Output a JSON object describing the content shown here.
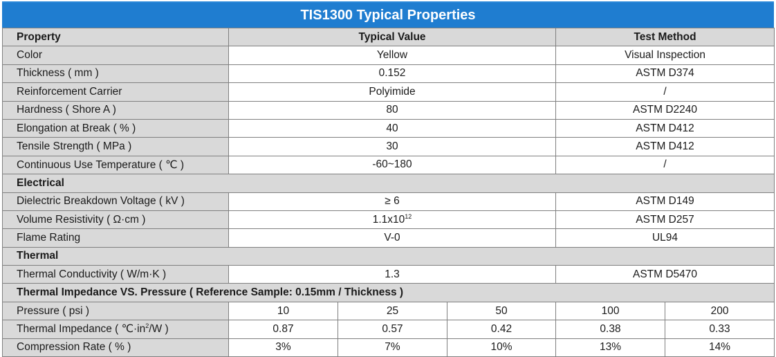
{
  "title": "TIS1300 Typical Properties",
  "header": {
    "property": "Property",
    "typical_value": "Typical Value",
    "test_method": "Test Method"
  },
  "general": [
    {
      "property": "Color",
      "value": "Yellow",
      "method": "Visual Inspection"
    },
    {
      "property": "Thickness ( mm )",
      "value": "0.152",
      "method": "ASTM D374"
    },
    {
      "property": "Reinforcement Carrier",
      "value": "Polyimide",
      "method": "/"
    },
    {
      "property": "Hardness ( Shore A )",
      "value": "80",
      "method": "ASTM D2240"
    },
    {
      "property": "Elongation at Break ( % )",
      "value": "40",
      "method": "ASTM D412"
    },
    {
      "property": "Tensile Strength ( MPa )",
      "value": "30",
      "method": "ASTM D412"
    },
    {
      "property": "Continuous Use Temperature ( ℃ )",
      "value": "-60~180",
      "method": "/"
    }
  ],
  "electrical": {
    "title": "Electrical",
    "rows": [
      {
        "property": "Dielectric Breakdown Voltage ( kV )",
        "value": "≥ 6",
        "method": "ASTM D149"
      },
      {
        "property": "Volume Resistivity ( Ω·cm )",
        "value_base": "1.1x10",
        "value_exp": "12",
        "method": "ASTM D257"
      },
      {
        "property": "Flame Rating",
        "value": "V-0",
        "method": "UL94"
      }
    ]
  },
  "thermal": {
    "title": "Thermal",
    "rows": [
      {
        "property": "Thermal Conductivity ( W/m·K )",
        "value": "1.3",
        "method": "ASTM D5470"
      }
    ]
  },
  "impedance": {
    "title": "Thermal Impedance VS. Pressure ( Reference Sample: 0.15mm / Thickness )",
    "pressure": {
      "label": "Pressure ( psi )",
      "values": [
        "10",
        "25",
        "50",
        "100",
        "200"
      ]
    },
    "impedance": {
      "label_pre": "Thermal Impedance ( ℃·in",
      "label_sup": "2",
      "label_post": "/W )",
      "values": [
        "0.87",
        "0.57",
        "0.42",
        "0.38",
        "0.33"
      ]
    },
    "compression": {
      "label": "Compression Rate ( % )",
      "values": [
        "3%",
        "7%",
        "10%",
        "13%",
        "14%"
      ]
    }
  }
}
